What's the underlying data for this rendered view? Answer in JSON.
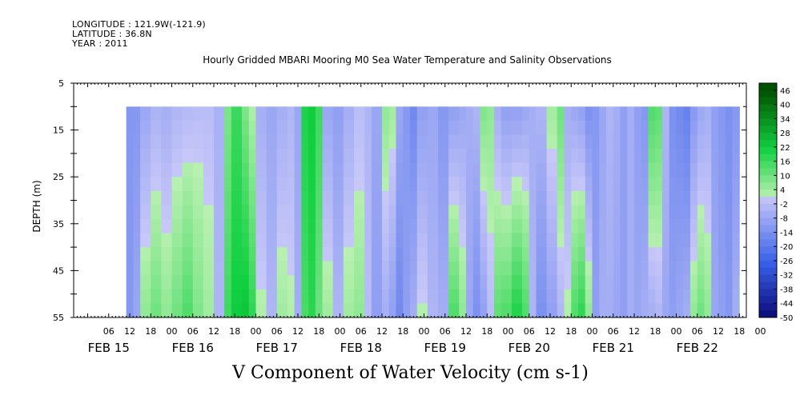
{
  "header": {
    "longitude": "LONGITUDE : 121.9W(-121.9)",
    "latitude": "LATITUDE : 36.8N",
    "year": "YEAR : 2011"
  },
  "chart_data": {
    "type": "heatmap",
    "title": "Hourly Gridded MBARI Mooring M0 Sea Water Temperature and Salinity Observations",
    "xlabel": "V Component of Water Velocity (cm s-1)",
    "ylabel": "DEPTH (m)",
    "x_hour_ticks": [
      "06",
      "12",
      "18",
      "00",
      "06",
      "12",
      "18",
      "00",
      "06",
      "12",
      "18",
      "00",
      "06",
      "12",
      "18",
      "00",
      "06",
      "12",
      "18",
      "00",
      "06",
      "12",
      "18",
      "00",
      "06",
      "12",
      "18",
      "00",
      "06",
      "12",
      "18",
      "00"
    ],
    "x_day_labels": [
      "FEB 15",
      "FEB 16",
      "FEB 17",
      "FEB 18",
      "FEB 19",
      "FEB 20",
      "FEB 21",
      "FEB 22"
    ],
    "x_range_hours_from_feb15_00": [
      -4,
      188
    ],
    "data_start_hours": 11,
    "data_end_hours": 186,
    "y_ticks": [
      5,
      15,
      25,
      35,
      45,
      55
    ],
    "y_range": [
      5,
      55
    ],
    "y_inverted": true,
    "data_depth_range": [
      10,
      55
    ],
    "colorbar": {
      "labels": [
        "46",
        "40",
        "34",
        "28",
        "22",
        "16",
        "10",
        "4",
        "-2",
        "-8",
        "-14",
        "-20",
        "-26",
        "-32",
        "-38",
        "-44",
        "-50"
      ],
      "range": [
        -50,
        49
      ],
      "step": 3,
      "colors": {
        "pos_max": "#005000",
        "pos_mid": "#10d040",
        "pos_min": "#b8f0b0",
        "neg_min": "#c8c8f8",
        "neg_mid": "#3860e8",
        "neg_max": "#0a0a78"
      }
    },
    "time_columns": [
      {
        "t": 11,
        "top": -12,
        "bot": -12
      },
      {
        "t": 13,
        "top": -12,
        "bot": -8
      },
      {
        "t": 15,
        "top": -8,
        "bot": 6
      },
      {
        "t": 18,
        "top": -5,
        "bot": 10
      },
      {
        "t": 21,
        "top": -6,
        "bot": 6
      },
      {
        "t": 24,
        "top": -4,
        "bot": 10
      },
      {
        "t": 27,
        "top": -3,
        "bot": 14
      },
      {
        "t": 30,
        "top": -2,
        "bot": 8
      },
      {
        "t": 33,
        "top": -2,
        "bot": 4
      },
      {
        "t": 36,
        "top": -5,
        "bot": -4
      },
      {
        "t": 39,
        "top": 8,
        "bot": 16
      },
      {
        "t": 41,
        "top": 16,
        "bot": 22
      },
      {
        "t": 44,
        "top": 8,
        "bot": 24
      },
      {
        "t": 46,
        "top": 2,
        "bot": 18
      },
      {
        "t": 48,
        "top": -6,
        "bot": 2
      },
      {
        "t": 51,
        "top": -8,
        "bot": -4
      },
      {
        "t": 54,
        "top": -6,
        "bot": 4
      },
      {
        "t": 57,
        "top": -4,
        "bot": 2
      },
      {
        "t": 59,
        "top": -8,
        "bot": -6
      },
      {
        "t": 61,
        "top": 20,
        "bot": 14
      },
      {
        "t": 63,
        "top": 22,
        "bot": 18
      },
      {
        "t": 65,
        "top": 16,
        "bot": 10
      },
      {
        "t": 67,
        "top": -8,
        "bot": 4
      },
      {
        "t": 70,
        "top": -10,
        "bot": -4
      },
      {
        "t": 73,
        "top": -6,
        "bot": 4
      },
      {
        "t": 76,
        "top": -2,
        "bot": 6
      },
      {
        "t": 79,
        "top": -4,
        "bot": -2
      },
      {
        "t": 81,
        "top": -8,
        "bot": -10
      },
      {
        "t": 84,
        "top": 6,
        "bot": -6
      },
      {
        "t": 86,
        "top": 4,
        "bot": -10
      },
      {
        "t": 88,
        "top": -8,
        "bot": -16
      },
      {
        "t": 90,
        "top": -12,
        "bot": -10
      },
      {
        "t": 92,
        "top": -16,
        "bot": -6
      },
      {
        "t": 94,
        "top": -10,
        "bot": 2
      },
      {
        "t": 97,
        "top": -8,
        "bot": -4
      },
      {
        "t": 100,
        "top": -12,
        "bot": -6
      },
      {
        "t": 103,
        "top": -10,
        "bot": 14
      },
      {
        "t": 106,
        "top": -8,
        "bot": 6
      },
      {
        "t": 108,
        "top": -6,
        "bot": -8
      },
      {
        "t": 110,
        "top": -4,
        "bot": -14
      },
      {
        "t": 112,
        "top": 8,
        "bot": -10
      },
      {
        "t": 114,
        "top": 6,
        "bot": -2
      },
      {
        "t": 116,
        "top": -6,
        "bot": 12
      },
      {
        "t": 118,
        "top": -10,
        "bot": 14
      },
      {
        "t": 121,
        "top": -10,
        "bot": 20
      },
      {
        "t": 124,
        "top": -8,
        "bot": 14
      },
      {
        "t": 126,
        "top": -6,
        "bot": -4
      },
      {
        "t": 128,
        "top": -4,
        "bot": -14
      },
      {
        "t": 131,
        "top": 4,
        "bot": -10
      },
      {
        "t": 134,
        "top": 10,
        "bot": -4
      },
      {
        "t": 136,
        "top": -6,
        "bot": 2
      },
      {
        "t": 138,
        "top": -8,
        "bot": 14
      },
      {
        "t": 140,
        "top": -10,
        "bot": 18
      },
      {
        "t": 142,
        "top": -14,
        "bot": 6
      },
      {
        "t": 144,
        "top": -12,
        "bot": -10
      },
      {
        "t": 146,
        "top": -8,
        "bot": -6
      },
      {
        "t": 148,
        "top": -4,
        "bot": -6
      },
      {
        "t": 150,
        "top": -6,
        "bot": -8
      },
      {
        "t": 152,
        "top": -10,
        "bot": -10
      },
      {
        "t": 154,
        "top": -6,
        "bot": -6
      },
      {
        "t": 156,
        "top": -10,
        "bot": -8
      },
      {
        "t": 158,
        "top": -12,
        "bot": -6
      },
      {
        "t": 160,
        "top": 14,
        "bot": -6
      },
      {
        "t": 162,
        "top": 12,
        "bot": -4
      },
      {
        "t": 164,
        "top": -4,
        "bot": -8
      },
      {
        "t": 166,
        "top": -14,
        "bot": -10
      },
      {
        "t": 168,
        "top": -16,
        "bot": -8
      },
      {
        "t": 170,
        "top": -18,
        "bot": -6
      },
      {
        "t": 172,
        "top": -12,
        "bot": 6
      },
      {
        "t": 174,
        "top": -8,
        "bot": 10
      },
      {
        "t": 176,
        "top": -6,
        "bot": 6
      },
      {
        "t": 178,
        "top": -10,
        "bot": -8
      },
      {
        "t": 180,
        "top": -12,
        "bot": -10
      },
      {
        "t": 182,
        "top": -14,
        "bot": -12
      },
      {
        "t": 184,
        "top": -12,
        "bot": -6
      },
      {
        "t": 186,
        "top": -10,
        "bot": 4
      }
    ]
  }
}
